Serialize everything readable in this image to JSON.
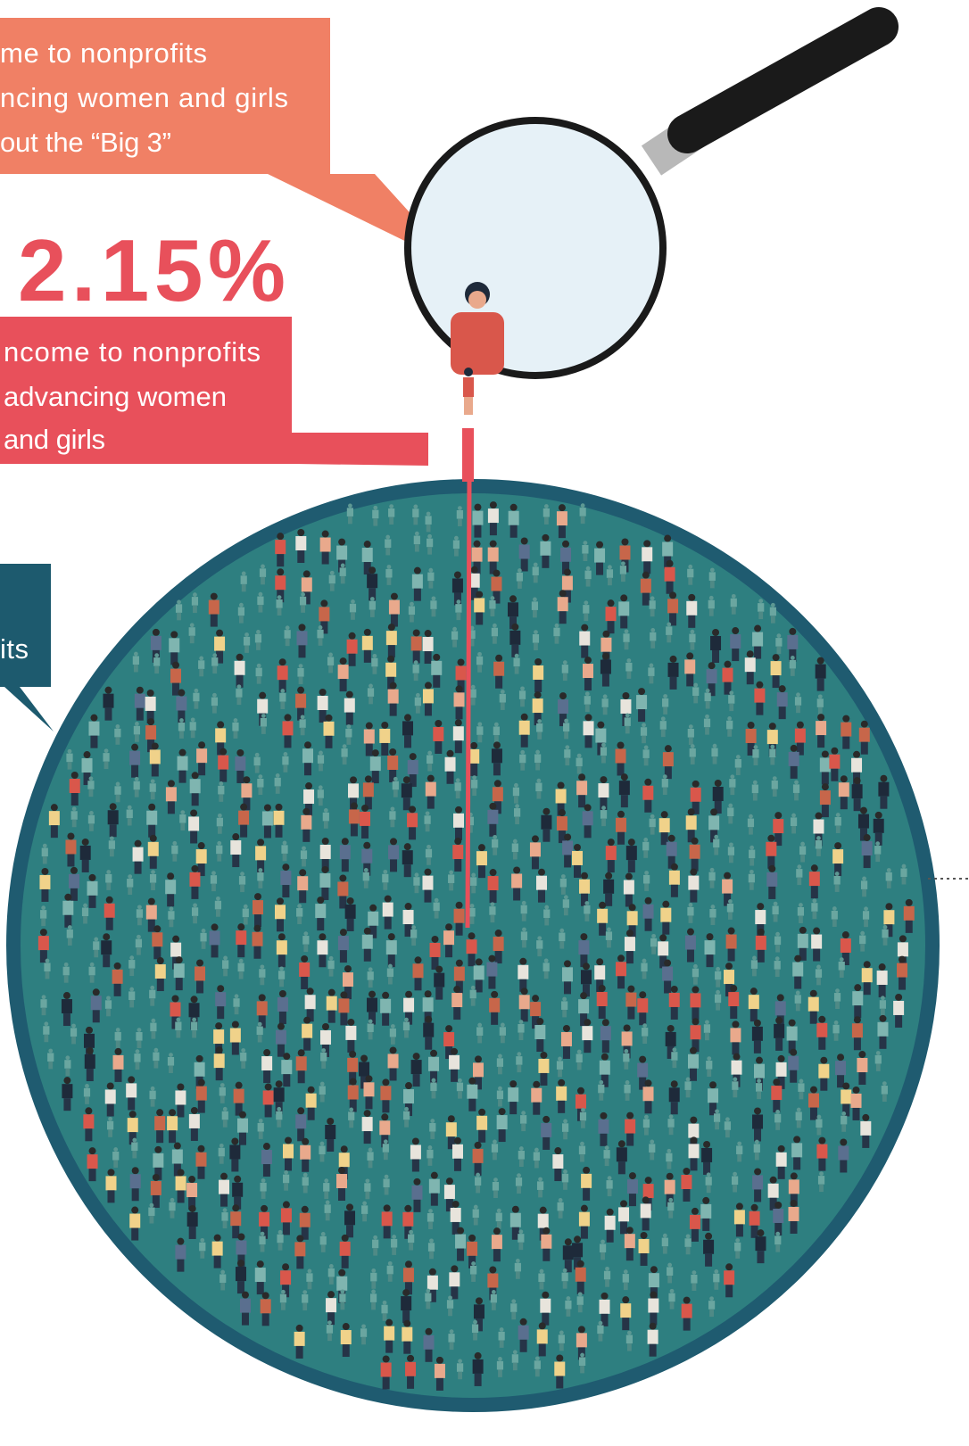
{
  "callouts": [
    {
      "lines": [
        "me to nonprofits",
        "ncing women and girls",
        "out the “Big 3”"
      ]
    },
    {
      "figure": "2.15%",
      "lines": [
        "ncome to nonprofits",
        "advancing women",
        "and girls"
      ]
    },
    {
      "lines": [
        "its"
      ]
    }
  ]
}
